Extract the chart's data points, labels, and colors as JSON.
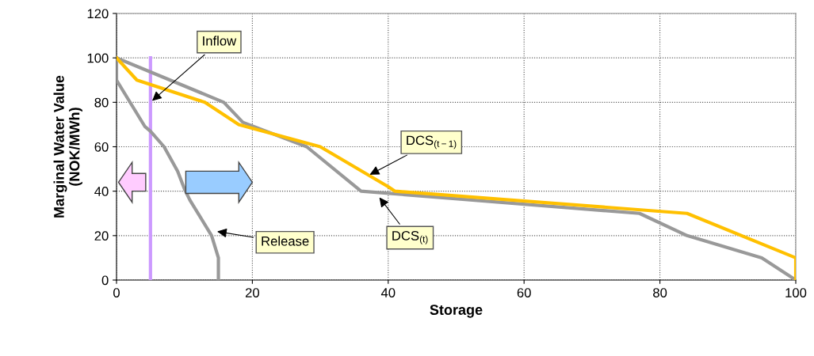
{
  "chart_data": {
    "type": "line",
    "xlabel": "Storage",
    "ylabel": "Marginal Water Value\n(NOK/MWh)",
    "xlim": [
      0,
      100
    ],
    "xticks": [
      0,
      20,
      40,
      60,
      80,
      100
    ],
    "ylim": [
      0,
      120
    ],
    "yticks": [
      0,
      20,
      40,
      60,
      80,
      100,
      120
    ],
    "grid": true,
    "marker": "none",
    "line_style": "solid",
    "series": [
      {
        "color": "#cc99ff",
        "x": [
          5,
          5
        ],
        "values": [
          0,
          100
        ]
      },
      {
        "color": "#999999",
        "x": [
          0,
          0,
          4.2,
          5,
          7,
          9,
          10,
          10.8,
          14,
          15,
          15
        ],
        "values": [
          100,
          90,
          69,
          67,
          60,
          49,
          41,
          36,
          20,
          10,
          0
        ]
      },
      {
        "color": "#999999",
        "x": [
          0,
          15.8,
          18.6,
          28,
          36,
          77,
          84,
          95,
          100
        ],
        "values": [
          100,
          80,
          71,
          60,
          40,
          30,
          20,
          10,
          0
        ]
      },
      {
        "color": "#ffc000",
        "x": [
          0,
          3,
          13,
          18,
          30,
          40,
          41,
          84,
          100,
          100
        ],
        "values": [
          100,
          90,
          80,
          70,
          60,
          42,
          40,
          30,
          10,
          0
        ]
      }
    ],
    "annotations": [
      {
        "text": "Inflow",
        "x": 5,
        "y": 80
      },
      {
        "text": "Release",
        "x": 14.5,
        "y": 22
      },
      {
        "text": "DCS$_{(t−1)}$",
        "x": 37,
        "y": 47
      },
      {
        "text": "DCS$_{(t)}$",
        "x": 38.5,
        "y": 38
      }
    ]
  }
}
